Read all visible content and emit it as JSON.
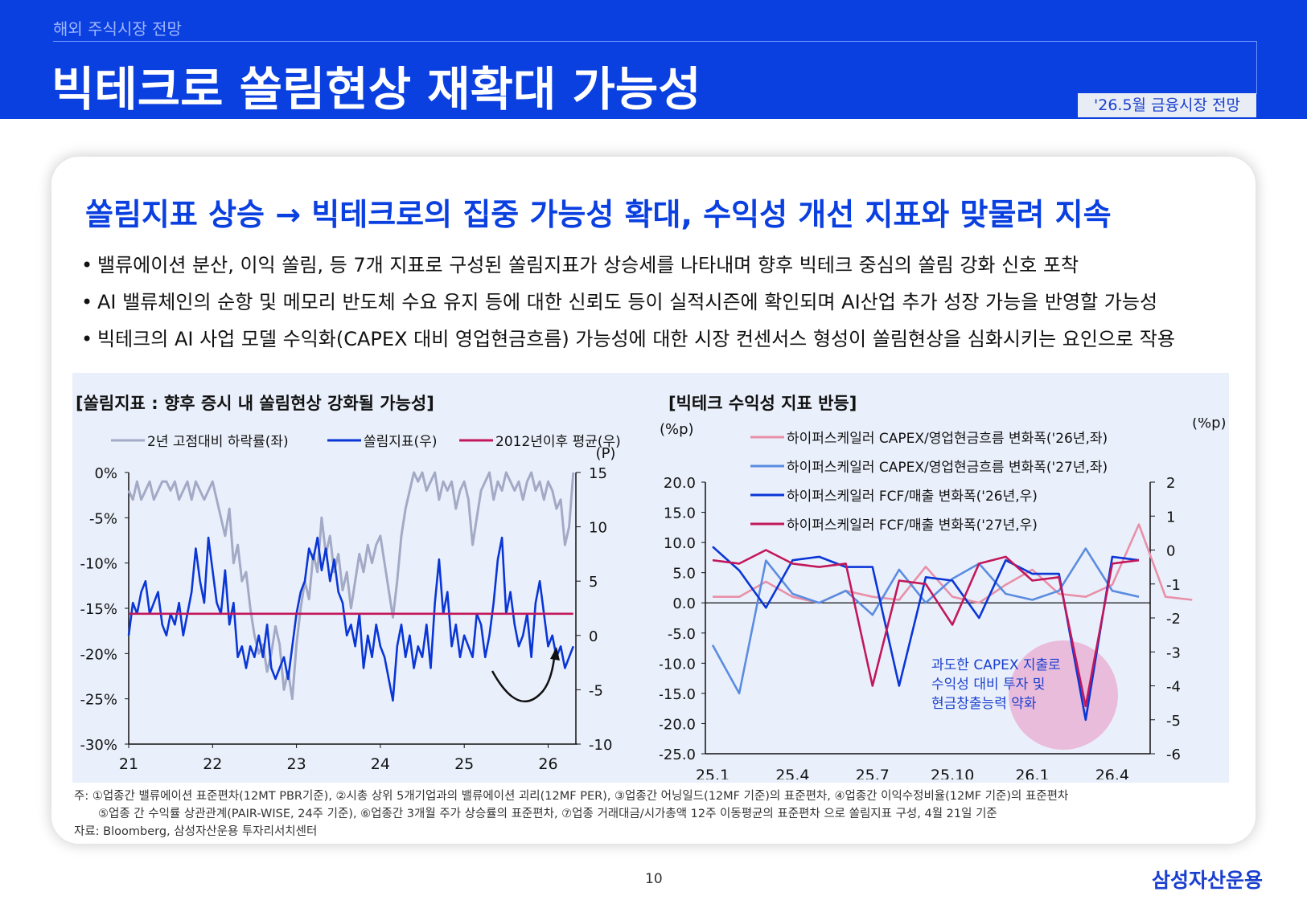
{
  "header": {
    "section": "해외 주식시장 전망",
    "title": "빅테크로 쏠림현상 재확대 가능성",
    "badge": "'26.5월 금융시장 전망"
  },
  "headline": "쏠림지표 상승 → 빅테크로의 집중 가능성 확대, 수익성 개선 지표와 맞물려 지속",
  "bullets": [
    "밸류에이션 분산, 이익 쏠림, 등 7개 지표로 구성된 쏠림지표가 상승세를 나타내며 향후 빅테크 중심의 쏠림 강화 신호 포착",
    "AI 밸류체인의 순항 및 메모리 반도체 수요 유지 등에 대한 신뢰도 등이 실적시즌에 확인되며 AI산업 추가 성장 가능을 반영할 가능성",
    "빅테크의 AI 사업 모델 수익화(CAPEX 대비 영업현금흐름) 가능성에 대한 시장 컨센서스 형성이 쏠림현상을 심화시키는 요인으로 작용"
  ],
  "notes": [
    "주: ①업종간 밸류에이션 표준편차(12MT PBR기준), ②시총 상위 5개기업과의 밸류에이션 괴리(12MF PER), ③업종간 어닝일드(12MF 기준)의 표준편차, ④업종간 이익수정비율(12MF 기준)의 표준편차",
    "⑤업종 간 수익률 상관관계(PAIR-WISE, 24주 기준), ⑥업종간 3개월 주가 상승률의 표준편차, ⑦업종 거래대금/시가총액 12주 이동평균의 표준편차 으로 쏠림지표 구성, 4월 21일 기준",
    "자료: Bloomberg, 삼성자산운용 투자리서치센터"
  ],
  "page_number": "10",
  "logo": "삼성자산운용",
  "colors": {
    "brand_blue": "#0a3fe0",
    "gray_series": "#a3aac6",
    "blue_series": "#0a36d6",
    "magenta_series": "#c2185b",
    "pink_series": "#e890a8",
    "lightblue_series": "#5b8ce0",
    "annotation_circle": "#eab6d8",
    "annotation_text": "#1a3fcf"
  },
  "chart_data": [
    {
      "type": "line",
      "title": "[쏠림지표 : 향후 증시 내 쏠림현상 강화될 가능성]",
      "y_left_ticks": [
        "0%",
        "-5%",
        "-10%",
        "-15%",
        "-20%",
        "-25%",
        "-30%"
      ],
      "y_left_range": [
        -30,
        0
      ],
      "y_right_unit": "(P)",
      "y_right_ticks": [
        "15",
        "10",
        "5",
        "0",
        "-5",
        "-10"
      ],
      "y_right_range": [
        -10,
        15
      ],
      "x_ticks": [
        "21",
        "22",
        "23",
        "24",
        "25",
        "26"
      ],
      "x_range": [
        2021.0,
        2026.35
      ],
      "series": [
        {
          "name": "2년 고점대비 하락률(좌)",
          "axis": "left",
          "color": "#a3aac6",
          "x": [
            2021.0,
            2021.05,
            2021.1,
            2021.15,
            2021.2,
            2021.25,
            2021.3,
            2021.35,
            2021.4,
            2021.45,
            2021.5,
            2021.55,
            2021.6,
            2021.65,
            2021.7,
            2021.75,
            2021.8,
            2021.85,
            2021.9,
            2021.95,
            2022.0,
            2022.05,
            2022.1,
            2022.15,
            2022.2,
            2022.25,
            2022.3,
            2022.35,
            2022.4,
            2022.45,
            2022.5,
            2022.55,
            2022.6,
            2022.65,
            2022.7,
            2022.75,
            2022.8,
            2022.85,
            2022.9,
            2022.95,
            2023.0,
            2023.05,
            2023.1,
            2023.15,
            2023.2,
            2023.25,
            2023.3,
            2023.35,
            2023.4,
            2023.45,
            2023.5,
            2023.55,
            2023.6,
            2023.65,
            2023.7,
            2023.75,
            2023.8,
            2023.85,
            2023.9,
            2023.95,
            2024.0,
            2024.05,
            2024.1,
            2024.15,
            2024.2,
            2024.25,
            2024.3,
            2024.35,
            2024.4,
            2024.45,
            2024.5,
            2024.55,
            2024.6,
            2024.65,
            2024.7,
            2024.75,
            2024.8,
            2024.85,
            2024.9,
            2024.95,
            2025.0,
            2025.05,
            2025.1,
            2025.15,
            2025.2,
            2025.25,
            2025.3,
            2025.35,
            2025.4,
            2025.45,
            2025.5,
            2025.55,
            2025.6,
            2025.65,
            2025.7,
            2025.75,
            2025.8,
            2025.85,
            2025.9,
            2025.95,
            2026.0,
            2026.05,
            2026.1,
            2026.15,
            2026.2,
            2026.25,
            2026.3
          ],
          "values": [
            -2,
            -3,
            -1,
            -3,
            -2,
            -1,
            -3,
            -2,
            -1,
            -1,
            -2,
            -1,
            -3,
            -2,
            -1,
            -3,
            -1,
            -2,
            -3,
            -2,
            -1,
            -3,
            -5,
            -7,
            -4,
            -10,
            -8,
            -12,
            -11,
            -15,
            -18,
            -20,
            -19,
            -22,
            -20,
            -17,
            -19,
            -24,
            -22,
            -25,
            -19,
            -15,
            -12,
            -14,
            -9,
            -11,
            -5,
            -9,
            -7,
            -11,
            -9,
            -13,
            -11,
            -15,
            -12,
            -9,
            -11,
            -8,
            -10,
            -8,
            -7,
            -10,
            -13,
            -16,
            -12,
            -7,
            -4,
            -2,
            0,
            -1,
            0,
            -2,
            -1,
            0,
            -3,
            -1,
            -2,
            -1,
            -4,
            -2,
            -1,
            -3,
            -8,
            -5,
            -2,
            -1,
            0,
            -3,
            -1,
            -2,
            0,
            -1,
            -2,
            -1,
            -3,
            -1,
            0,
            -2,
            -1,
            -3,
            -1,
            -2,
            -4,
            -3,
            -8,
            -6,
            0
          ]
        },
        {
          "name": "쏠림지표(우)",
          "axis": "right",
          "color": "#0a36d6",
          "x": [
            2021.0,
            2021.05,
            2021.1,
            2021.15,
            2021.2,
            2021.25,
            2021.3,
            2021.35,
            2021.4,
            2021.45,
            2021.5,
            2021.55,
            2021.6,
            2021.65,
            2021.7,
            2021.75,
            2021.8,
            2021.85,
            2021.9,
            2021.95,
            2022.0,
            2022.05,
            2022.1,
            2022.15,
            2022.2,
            2022.25,
            2022.3,
            2022.35,
            2022.4,
            2022.45,
            2022.5,
            2022.55,
            2022.6,
            2022.65,
            2022.7,
            2022.75,
            2022.8,
            2022.85,
            2022.9,
            2022.95,
            2023.0,
            2023.05,
            2023.1,
            2023.15,
            2023.2,
            2023.25,
            2023.3,
            2023.35,
            2023.4,
            2023.45,
            2023.5,
            2023.55,
            2023.6,
            2023.65,
            2023.7,
            2023.75,
            2023.8,
            2023.85,
            2023.9,
            2023.95,
            2024.0,
            2024.05,
            2024.1,
            2024.15,
            2024.2,
            2024.25,
            2024.3,
            2024.35,
            2024.4,
            2024.45,
            2024.5,
            2024.55,
            2024.6,
            2024.65,
            2024.7,
            2024.75,
            2024.8,
            2024.85,
            2024.9,
            2024.95,
            2025.0,
            2025.05,
            2025.1,
            2025.15,
            2025.2,
            2025.25,
            2025.3,
            2025.35,
            2025.4,
            2025.45,
            2025.5,
            2025.55,
            2025.6,
            2025.65,
            2025.7,
            2025.75,
            2025.8,
            2025.85,
            2025.9,
            2025.95,
            2026.0,
            2026.05,
            2026.1,
            2026.15,
            2026.2,
            2026.25,
            2026.3
          ],
          "values": [
            0,
            3,
            2,
            4,
            5,
            2,
            3,
            4,
            1,
            0,
            2,
            1,
            3,
            0,
            2,
            4,
            8,
            5,
            3,
            9,
            6,
            3,
            2,
            6,
            1,
            3,
            -2,
            -1,
            -3,
            -1,
            -2,
            0,
            -2,
            1,
            -3,
            -4,
            -3,
            -2,
            -4,
            -1,
            2,
            4,
            5,
            8,
            7,
            9,
            6,
            8,
            5,
            7,
            4,
            3,
            0,
            1,
            -1,
            2,
            -3,
            0,
            -2,
            1,
            -1,
            -2,
            -4,
            -6,
            -1,
            1,
            -2,
            0,
            -3,
            -1,
            -2,
            1,
            -3,
            3,
            7,
            2,
            4,
            -1,
            1,
            -2,
            0,
            -1,
            -2,
            2,
            1,
            -2,
            0,
            3,
            7,
            9,
            2,
            4,
            1,
            -1,
            0,
            2,
            -2,
            3,
            5,
            2,
            -1,
            0,
            -2,
            -1,
            -3,
            -2,
            -1
          ]
        },
        {
          "name": "2012년이후 평균(우)",
          "axis": "right",
          "color": "#c2185b",
          "x": [
            2021.0,
            2026.3
          ],
          "values": [
            2.0,
            2.0
          ]
        }
      ],
      "annotation": "curved up-arrow near 26"
    },
    {
      "type": "line",
      "title": "[빅테크 수익성 지표 반등]",
      "y_left_unit": "(%p)",
      "y_left_ticks": [
        "20.0",
        "15.0",
        "10.0",
        "5.0",
        "0.0",
        "-5.0",
        "-10.0",
        "-15.0",
        "-20.0",
        "-25.0"
      ],
      "y_left_range": [
        -25,
        20
      ],
      "y_right_unit": "(%p)",
      "y_right_ticks": [
        "2",
        "1",
        "0",
        "-1",
        "-2",
        "-3",
        "-4",
        "-5",
        "-6"
      ],
      "y_right_range": [
        -6,
        2
      ],
      "x_ticks": [
        "25.1",
        "25.4",
        "25.7",
        "25.10",
        "26.1",
        "26.4"
      ],
      "series": [
        {
          "name": "하이퍼스케일러 CAPEX/영업현금흐름 변화폭('26년,좌)",
          "axis": "left",
          "color": "#e890a8",
          "values": [
            1,
            1,
            3.5,
            1,
            0,
            2,
            1,
            0.5,
            6,
            1,
            0,
            3,
            5.5,
            1.5,
            1,
            3,
            13,
            1,
            0.5
          ]
        },
        {
          "name": "하이퍼스케일러 CAPEX/영업현금흐름 변화폭('27년,좌)",
          "axis": "left",
          "color": "#5b8ce0",
          "values": [
            -7,
            -15,
            7,
            1.5,
            0,
            2,
            -2,
            5.5,
            0,
            4,
            6.5,
            1.5,
            0.5,
            2,
            9,
            2,
            1
          ]
        },
        {
          "name": "하이퍼스케일러 FCF/매출 변화폭('26년,우)",
          "axis": "right",
          "color": "#0a36d6",
          "values": [
            0.1,
            -0.6,
            -1.7,
            -0.3,
            -0.2,
            -0.5,
            -0.5,
            -4.0,
            -0.8,
            -0.9,
            -2.0,
            -0.3,
            -0.7,
            -0.7,
            -5.0,
            -0.2,
            -0.3
          ]
        },
        {
          "name": "하이퍼스케일러 FCF/매출 변화폭('27년,우)",
          "axis": "right",
          "color": "#c2185b",
          "values": [
            -0.3,
            -0.4,
            0,
            -0.4,
            -0.5,
            -0.4,
            -4.0,
            -0.9,
            -1.0,
            -2.2,
            -0.4,
            -0.2,
            -0.9,
            -0.8,
            -4.6,
            -0.4,
            -0.3
          ]
        }
      ],
      "annotation": "과도한 CAPEX 지출로\n수익성 대비 투자 및\n현금창출능력 약화"
    }
  ]
}
